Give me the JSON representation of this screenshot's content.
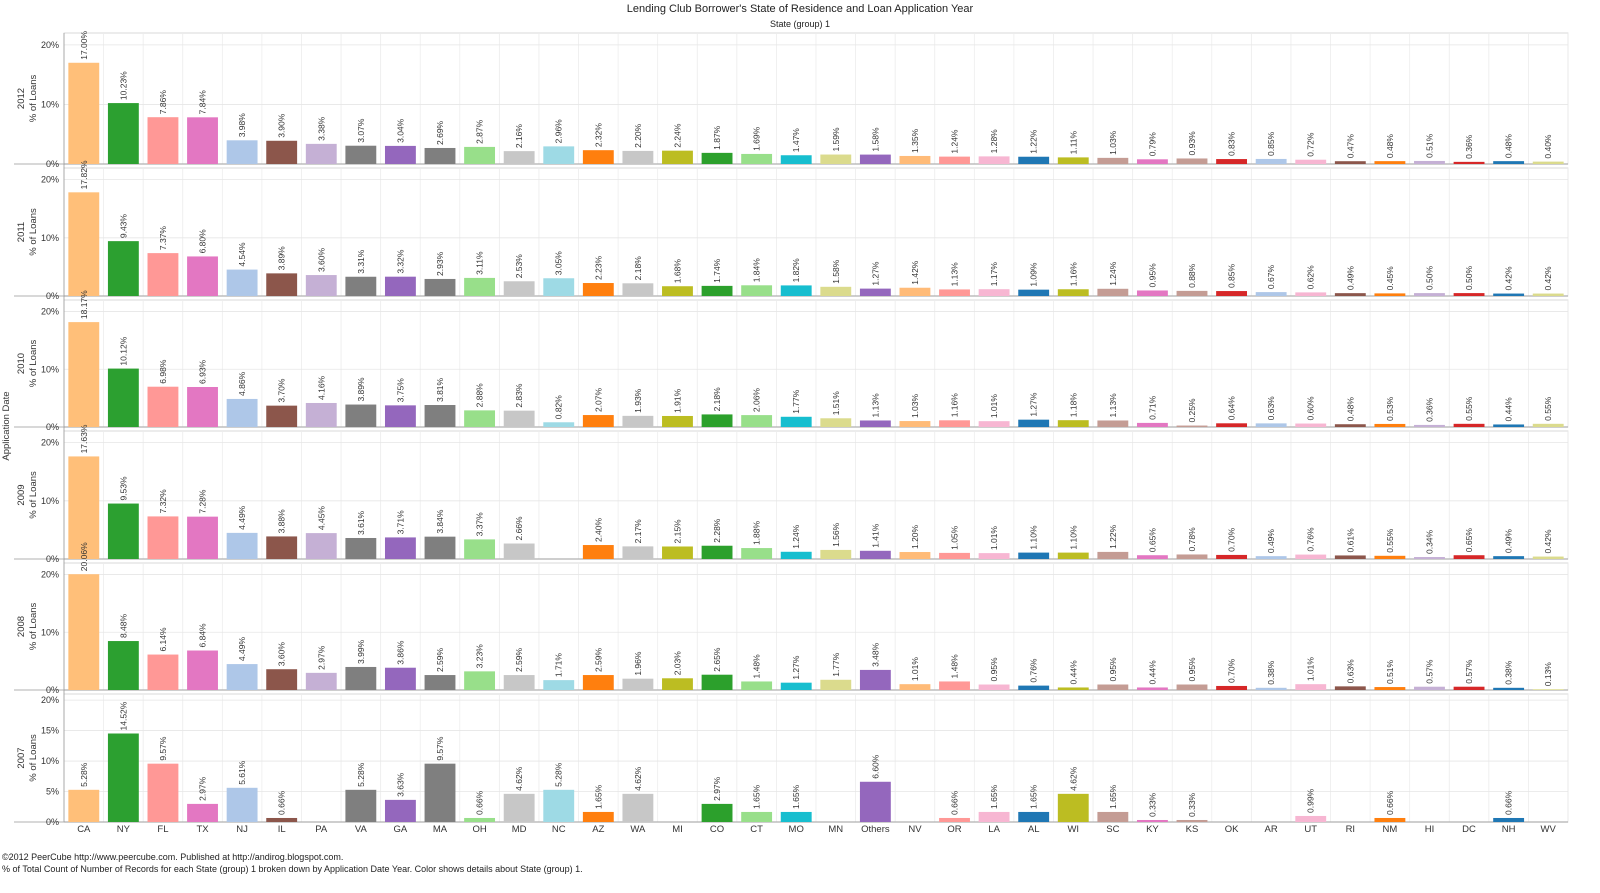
{
  "chart_data": {
    "type": "bar",
    "title": "Lending Club Borrower's State of Residence and Loan Application Year",
    "subtitle": "State (group) 1",
    "row_axis_label": "Application Date",
    "ylabel": "% of Loans",
    "categories": [
      "CA",
      "NY",
      "FL",
      "TX",
      "NJ",
      "IL",
      "PA",
      "VA",
      "GA",
      "MA",
      "OH",
      "MD",
      "NC",
      "AZ",
      "WA",
      "MI",
      "CO",
      "CT",
      "MO",
      "MN",
      "Others",
      "NV",
      "OR",
      "LA",
      "AL",
      "WI",
      "SC",
      "KY",
      "KS",
      "OK",
      "AR",
      "UT",
      "RI",
      "NM",
      "HI",
      "DC",
      "NH",
      "WV"
    ],
    "colors": [
      "#FFBF79",
      "#2CA030",
      "#FF9896",
      "#E377C2",
      "#AEC7E8",
      "#8C564B",
      "#C5B0D5",
      "#7F7F7F",
      "#9467BD",
      "#7F7F7F",
      "#98DF8A",
      "#C7C7C7",
      "#9EDAE5",
      "#FF7F0E",
      "#C7C7C7",
      "#BCBD22",
      "#2CA02C",
      "#98DF8A",
      "#17BECF",
      "#DBDB8D",
      "#9467BD",
      "#FFBB78",
      "#FF9896",
      "#F7B6D2",
      "#1F77B4",
      "#BCBD22",
      "#C49C94",
      "#E377C2",
      "#C49C94",
      "#D62728",
      "#AEC7E8",
      "#F7B6D2",
      "#8C564B",
      "#FF7F0E",
      "#C5B0D5",
      "#D62728",
      "#1F77B4",
      "#DBDB8D"
    ],
    "series": [
      {
        "name": "2012",
        "ylim": [
          0,
          22
        ],
        "ticks": [
          "20%",
          "10%",
          "0%"
        ],
        "tick_values": [
          20,
          10,
          0
        ],
        "values": [
          17.0,
          10.23,
          7.86,
          7.84,
          3.98,
          3.9,
          3.38,
          3.07,
          3.04,
          2.69,
          2.87,
          2.16,
          2.96,
          2.32,
          2.2,
          2.24,
          1.87,
          1.69,
          1.47,
          1.59,
          1.58,
          1.35,
          1.24,
          1.28,
          1.22,
          1.11,
          1.03,
          0.79,
          0.93,
          0.83,
          0.85,
          0.72,
          0.47,
          0.48,
          0.51,
          0.36,
          0.48,
          0.4
        ],
        "labels": [
          "17.00%",
          "10.23%",
          "7.86%",
          "7.84%",
          "3.98%",
          "3.90%",
          "3.38%",
          "3.07%",
          "3.04%",
          "2.69%",
          "2.87%",
          "2.16%",
          "2.96%",
          "2.32%",
          "2.20%",
          "2.24%",
          "1.87%",
          "1.69%",
          "1.47%",
          "1.59%",
          "1.58%",
          "1.35%",
          "1.24%",
          "1.28%",
          "1.22%",
          "1.11%",
          "1.03%",
          "0.79%",
          "0.93%",
          "0.83%",
          "0.85%",
          "0.72%",
          "0.47%",
          "0.48%",
          "0.51%",
          "0.36%",
          "0.48%",
          "0.40%"
        ]
      },
      {
        "name": "2011",
        "ylim": [
          0,
          22
        ],
        "ticks": [
          "20%",
          "10%",
          "0%"
        ],
        "tick_values": [
          20,
          10,
          0
        ],
        "values": [
          17.82,
          9.43,
          7.37,
          6.8,
          4.54,
          3.89,
          3.6,
          3.31,
          3.32,
          2.93,
          3.11,
          2.53,
          3.05,
          2.23,
          2.18,
          1.68,
          1.74,
          1.84,
          1.82,
          1.58,
          1.27,
          1.42,
          1.13,
          1.17,
          1.09,
          1.16,
          1.24,
          0.95,
          0.88,
          0.85,
          0.67,
          0.62,
          0.49,
          0.45,
          0.5,
          0.5,
          0.42,
          0.42
        ],
        "labels": [
          "17.82%",
          "9.43%",
          "7.37%",
          "6.80%",
          "4.54%",
          "3.89%",
          "3.60%",
          "3.31%",
          "3.32%",
          "2.93%",
          "3.11%",
          "2.53%",
          "3.05%",
          "2.23%",
          "2.18%",
          "1.68%",
          "1.74%",
          "1.84%",
          "1.82%",
          "1.58%",
          "1.27%",
          "1.42%",
          "1.13%",
          "1.17%",
          "1.09%",
          "1.16%",
          "1.24%",
          "0.95%",
          "0.88%",
          "0.85%",
          "0.67%",
          "0.62%",
          "0.49%",
          "0.45%",
          "0.50%",
          "0.50%",
          "0.42%",
          "0.42%"
        ]
      },
      {
        "name": "2010",
        "ylim": [
          0,
          22
        ],
        "ticks": [
          "20%",
          "10%",
          "0%"
        ],
        "tick_values": [
          20,
          10,
          0
        ],
        "values": [
          18.17,
          10.12,
          6.98,
          6.93,
          4.86,
          3.7,
          4.16,
          3.89,
          3.75,
          3.81,
          2.88,
          2.83,
          0.82,
          2.07,
          1.93,
          1.91,
          2.18,
          2.06,
          1.77,
          1.51,
          1.13,
          1.03,
          1.16,
          1.01,
          1.27,
          1.18,
          1.13,
          0.71,
          0.25,
          0.64,
          0.63,
          0.6,
          0.48,
          0.53,
          0.36,
          0.55,
          0.44,
          0.55
        ],
        "labels": [
          "18.17%",
          "10.12%",
          "6.98%",
          "6.93%",
          "4.86%",
          "3.70%",
          "4.16%",
          "3.89%",
          "3.75%",
          "3.81%",
          "2.88%",
          "2.83%",
          "0.82%",
          "2.07%",
          "1.93%",
          "1.91%",
          "2.18%",
          "2.06%",
          "1.77%",
          "1.51%",
          "1.13%",
          "1.03%",
          "1.16%",
          "1.01%",
          "1.27%",
          "1.18%",
          "1.13%",
          "0.71%",
          "0.25%",
          "0.64%",
          "0.63%",
          "0.60%",
          "0.48%",
          "0.53%",
          "0.36%",
          "0.55%",
          "0.44%",
          "0.55%"
        ]
      },
      {
        "name": "2009",
        "ylim": [
          0,
          22
        ],
        "ticks": [
          "20%",
          "10%",
          "0%"
        ],
        "tick_values": [
          20,
          10,
          0
        ],
        "values": [
          17.63,
          9.53,
          7.32,
          7.28,
          4.49,
          3.88,
          4.45,
          3.61,
          3.71,
          3.84,
          3.37,
          2.66,
          null,
          2.4,
          2.17,
          2.15,
          2.28,
          1.88,
          1.24,
          1.56,
          1.41,
          1.2,
          1.05,
          1.01,
          1.1,
          1.1,
          1.22,
          0.65,
          0.78,
          0.7,
          0.49,
          0.76,
          0.61,
          0.55,
          0.34,
          0.65,
          0.49,
          0.42
        ],
        "labels": [
          "17.63%",
          "9.53%",
          "7.32%",
          "7.28%",
          "4.49%",
          "3.88%",
          "4.45%",
          "3.61%",
          "3.71%",
          "3.84%",
          "3.37%",
          "2.66%",
          "",
          "2.40%",
          "2.17%",
          "2.15%",
          "2.28%",
          "1.88%",
          "1.24%",
          "1.56%",
          "1.41%",
          "1.20%",
          "1.05%",
          "1.01%",
          "1.10%",
          "1.10%",
          "1.22%",
          "0.65%",
          "0.78%",
          "0.70%",
          "0.49%",
          "0.76%",
          "0.61%",
          "0.55%",
          "0.34%",
          "0.65%",
          "0.49%",
          "0.42%"
        ]
      },
      {
        "name": "2008",
        "ylim": [
          0,
          22
        ],
        "ticks": [
          "20%",
          "10%",
          "0%"
        ],
        "tick_values": [
          20,
          10,
          0
        ],
        "values": [
          20.06,
          8.48,
          6.14,
          6.84,
          4.49,
          3.6,
          2.97,
          3.99,
          3.86,
          2.59,
          3.23,
          2.59,
          1.71,
          2.59,
          1.96,
          2.03,
          2.65,
          1.48,
          1.27,
          1.77,
          3.48,
          1.01,
          1.48,
          0.95,
          0.76,
          0.44,
          0.95,
          0.44,
          0.95,
          0.7,
          0.38,
          1.01,
          0.63,
          0.51,
          0.57,
          0.57,
          0.38,
          0.13
        ],
        "labels": [
          "20.06%",
          "8.48%",
          "6.14%",
          "6.84%",
          "4.49%",
          "3.60%",
          "2.97%",
          "3.99%",
          "3.86%",
          "2.59%",
          "3.23%",
          "2.59%",
          "1.71%",
          "2.59%",
          "1.96%",
          "2.03%",
          "2.65%",
          "1.48%",
          "1.27%",
          "1.77%",
          "3.48%",
          "1.01%",
          "1.48%",
          "0.95%",
          "0.76%",
          "0.44%",
          "0.95%",
          "0.44%",
          "0.95%",
          "0.70%",
          "0.38%",
          "1.01%",
          "0.63%",
          "0.51%",
          "0.57%",
          "0.57%",
          "0.38%",
          "0.13%"
        ]
      },
      {
        "name": "2007",
        "ylim": [
          0,
          21
        ],
        "ticks": [
          "20%",
          "15%",
          "10%",
          "5%",
          "0%"
        ],
        "tick_values": [
          20,
          15,
          10,
          5,
          0
        ],
        "values": [
          5.28,
          14.52,
          9.57,
          2.97,
          5.61,
          0.66,
          null,
          5.28,
          3.63,
          9.57,
          0.66,
          4.62,
          5.28,
          1.65,
          4.62,
          null,
          2.97,
          1.65,
          1.65,
          null,
          6.6,
          null,
          0.66,
          1.65,
          1.65,
          4.62,
          1.65,
          0.33,
          0.33,
          null,
          null,
          0.99,
          null,
          0.66,
          null,
          null,
          0.66,
          null
        ],
        "labels": [
          "5.28%",
          "14.52%",
          "9.57%",
          "2.97%",
          "5.61%",
          "0.66%",
          "",
          "5.28%",
          "3.63%",
          "9.57%",
          "0.66%",
          "4.62%",
          "5.28%",
          "1.65%",
          "4.62%",
          "",
          "2.97%",
          "1.65%",
          "1.65%",
          "",
          "6.60%",
          "",
          "0.66%",
          "1.65%",
          "1.65%",
          "4.62%",
          "1.65%",
          "0.33%",
          "0.33%",
          "",
          "",
          "0.99%",
          "",
          "0.66%",
          "",
          "",
          "0.66%",
          ""
        ]
      }
    ],
    "grid": true,
    "legend": "none"
  },
  "footer": {
    "line1": "©2012 PeerCube http://www.peercube.com.  Published at http://andirog.blogspot.com.",
    "line2": "% of Total Count of Number of Records for each State (group) 1 broken down by Application Date Year.  Color shows details about State (group) 1."
  }
}
